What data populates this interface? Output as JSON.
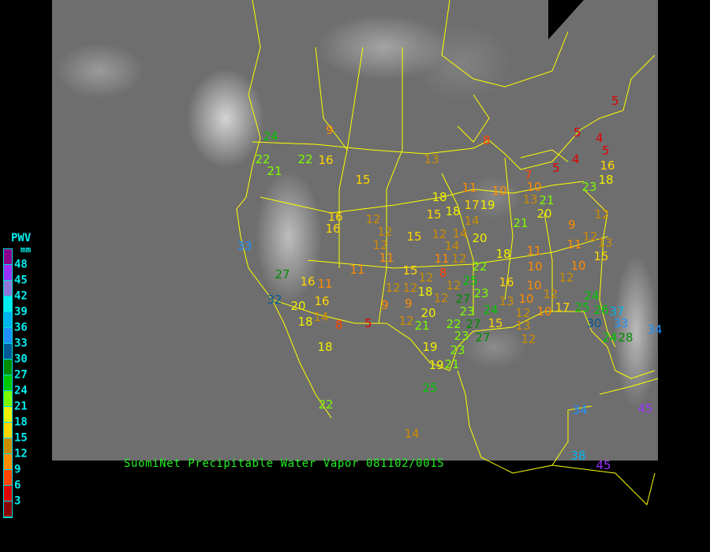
{
  "title": "SuomiNet Precipitable Water Vapor 081102/0015",
  "legend": {
    "title": "PWV",
    "unit": "mm",
    "labels": [
      "48",
      "45",
      "42",
      "39",
      "36",
      "33",
      "30",
      "27",
      "24",
      "21",
      "18",
      "15",
      "12",
      "9",
      "6",
      "3"
    ],
    "colors": [
      "#8b008b",
      "#9932ff",
      "#8c78d8",
      "#00f0f0",
      "#00b4ee",
      "#1e90ff",
      "#005a96",
      "#008c00",
      "#00c800",
      "#7cfc00",
      "#f0f000",
      "#ffd700",
      "#cd8c00",
      "#ff8c00",
      "#ff4500",
      "#e00000",
      "#8b0000"
    ]
  },
  "map": {
    "border_color": "#ffff00",
    "background": "satellite-ir-grayscale"
  },
  "stations": [
    "24",
    "22",
    "21",
    "22",
    "16",
    "9",
    "15",
    "13",
    "18",
    "15",
    "16",
    "16",
    "12",
    "12",
    "12",
    "11",
    "15",
    "12",
    "14",
    "11",
    "12",
    "33",
    "11",
    "15",
    "8",
    "27",
    "16",
    "11",
    "12",
    "12",
    "18",
    "12",
    "12",
    "12",
    "32",
    "20",
    "16",
    "9",
    "9",
    "14",
    "18",
    "8",
    "5",
    "20",
    "12",
    "21",
    "5",
    "5",
    "4",
    "5",
    "8",
    "4",
    "5",
    "7",
    "10",
    "13",
    "16",
    "18",
    "23",
    "11",
    "10",
    "21",
    "20",
    "18",
    "17",
    "19",
    "12",
    "21",
    "9",
    "20",
    "14",
    "14",
    "12",
    "13",
    "11",
    "18",
    "11",
    "15",
    "22",
    "10",
    "10",
    "25",
    "16",
    "10",
    "12",
    "27",
    "23",
    "13",
    "10",
    "12",
    "24",
    "23",
    "24",
    "15",
    "12",
    "10",
    "17",
    "25",
    "26",
    "37",
    "22",
    "27",
    "13",
    "30",
    "33",
    "23",
    "27",
    "12",
    "24",
    "28",
    "34",
    "19",
    "23",
    "19",
    "21",
    "25",
    "18",
    "22",
    "14",
    "34",
    "38",
    "45",
    "45"
  ]
}
